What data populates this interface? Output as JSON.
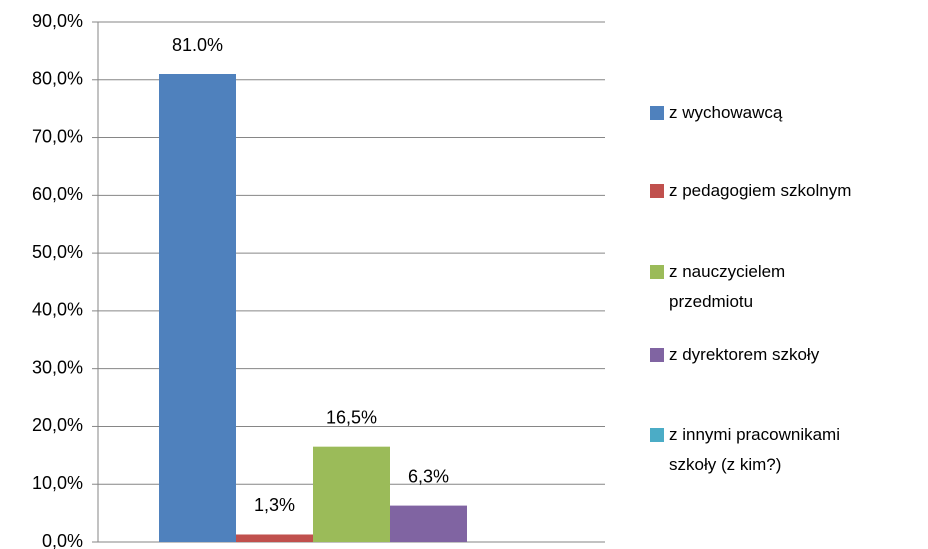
{
  "chart_data": {
    "type": "bar",
    "categories": [
      null
    ],
    "series": [
      {
        "name": "z wychowawcą",
        "color": "#4f81bd",
        "values": [
          81.0
        ],
        "value_labels": [
          "81.0%"
        ]
      },
      {
        "name": "z pedagogiem szkolnym",
        "color": "#c0504d",
        "values": [
          1.3
        ],
        "value_labels": [
          "1,3%"
        ]
      },
      {
        "name": "z nauczycielem przedmiotu",
        "color": "#9bbb59",
        "values": [
          16.5
        ],
        "value_labels": [
          "16,5%"
        ]
      },
      {
        "name": "z dyrektorem szkoły",
        "color": "#8064a2",
        "values": [
          6.3
        ],
        "value_labels": [
          "6,3%"
        ]
      },
      {
        "name": "z innymi pracownikami szkoły (z kim?)",
        "color": "#4bacc6",
        "values": [
          null
        ],
        "value_labels": [
          null
        ]
      }
    ],
    "ylim": [
      0,
      90
    ],
    "yticks": [
      {
        "value": 0,
        "label": "0,0%"
      },
      {
        "value": 10,
        "label": "10,0%"
      },
      {
        "value": 20,
        "label": "20,0%"
      },
      {
        "value": 30,
        "label": "30,0%"
      },
      {
        "value": 40,
        "label": "40,0%"
      },
      {
        "value": 50,
        "label": "50,0%"
      },
      {
        "value": 60,
        "label": "60,0%"
      },
      {
        "value": 70,
        "label": "70,0%"
      },
      {
        "value": 80,
        "label": "80,0%"
      },
      {
        "value": 90,
        "label": "90,0%"
      }
    ],
    "grid": true,
    "legend": "right"
  }
}
